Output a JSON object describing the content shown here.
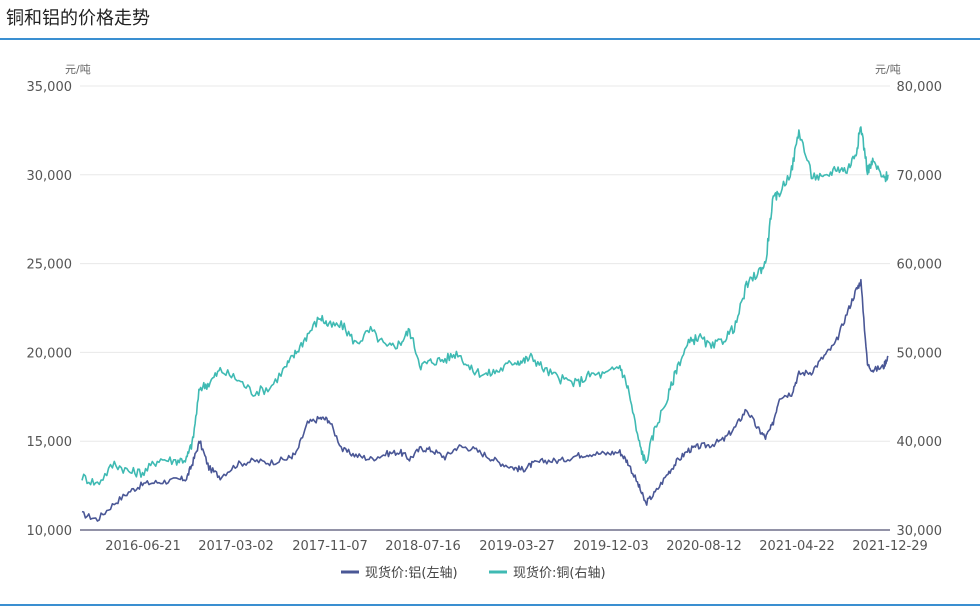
{
  "page": {
    "title": "铜和铝的价格走势"
  },
  "chart_data": {
    "type": "line",
    "title": "",
    "left_unit": "元/吨",
    "right_unit": "元/吨",
    "left_ylim": [
      10000,
      35000
    ],
    "right_ylim": [
      30000,
      80000
    ],
    "left_ticks": [
      "10,000",
      "15,000",
      "20,000",
      "25,000",
      "30,000",
      "35,000"
    ],
    "right_ticks": [
      "30,000",
      "40,000",
      "50,000",
      "60,000",
      "70,000",
      "80,000"
    ],
    "x_ticks": [
      "2016-06-21",
      "2017-03-02",
      "2017-11-07",
      "2018-07-16",
      "2019-03-27",
      "2019-12-03",
      "2020-08-12",
      "2021-04-22",
      "2021-12-29"
    ],
    "grid": "horizontal",
    "legend_position": "bottom",
    "x": [
      "2016-01-04",
      "2016-02-15",
      "2016-04-01",
      "2016-05-15",
      "2016-06-21",
      "2016-08-01",
      "2016-09-15",
      "2016-10-15",
      "2016-11-01",
      "2016-11-20",
      "2016-12-15",
      "2017-01-15",
      "2017-03-02",
      "2017-04-15",
      "2017-05-30",
      "2017-07-15",
      "2017-08-10",
      "2017-09-10",
      "2017-10-15",
      "2017-11-07",
      "2017-12-15",
      "2018-01-20",
      "2018-03-01",
      "2018-04-15",
      "2018-05-20",
      "2018-06-15",
      "2018-07-16",
      "2018-08-15",
      "2018-09-20",
      "2018-10-25",
      "2018-12-01",
      "2019-01-10",
      "2019-02-15",
      "2019-03-27",
      "2019-04-20",
      "2019-05-15",
      "2019-06-20",
      "2019-08-01",
      "2019-09-15",
      "2019-10-20",
      "2019-12-03",
      "2020-01-10",
      "2020-02-01",
      "2020-03-01",
      "2020-03-20",
      "2020-04-15",
      "2020-05-20",
      "2020-06-15",
      "2020-07-15",
      "2020-08-12",
      "2020-09-15",
      "2020-10-20",
      "2020-11-20",
      "2020-12-20",
      "2021-01-20",
      "2021-02-10",
      "2021-03-01",
      "2021-03-20",
      "2021-04-22",
      "2021-05-12",
      "2021-06-15",
      "2021-07-20",
      "2021-08-20",
      "2021-09-20",
      "2021-10-15",
      "2021-10-28",
      "2021-11-15",
      "2021-12-01",
      "2021-12-29",
      "2022-01-10"
    ],
    "series": [
      {
        "name": "现货价:铝(左轴)",
        "color": "#4a5796",
        "axis": "left",
        "values": [
          10900,
          10600,
          11500,
          12200,
          12600,
          12700,
          12800,
          12900,
          13800,
          15000,
          13500,
          13000,
          13700,
          13900,
          13800,
          14000,
          14300,
          16000,
          16300,
          16200,
          14500,
          14200,
          14000,
          14300,
          14400,
          14000,
          14600,
          14500,
          14100,
          14700,
          14600,
          14200,
          13800,
          13500,
          13400,
          13700,
          13900,
          13900,
          14200,
          14300,
          14300,
          14400,
          13800,
          12500,
          11500,
          12100,
          13200,
          13900,
          14500,
          14700,
          14800,
          15100,
          15800,
          16800,
          15700,
          15200,
          15900,
          17500,
          17700,
          18800,
          18900,
          19800,
          20500,
          22200,
          23500,
          24000,
          19300,
          19000,
          19200,
          19800
        ]
      },
      {
        "name": "现货价:铜(右轴)",
        "color": "#3fbab3",
        "axis": "right",
        "values": [
          36000,
          35200,
          37500,
          36500,
          36500,
          38000,
          37800,
          38000,
          40000,
          46000,
          46500,
          48000,
          47000,
          45500,
          46000,
          48500,
          50000,
          52000,
          54000,
          53000,
          53000,
          51000,
          52500,
          50500,
          51000,
          52500,
          48500,
          49000,
          49200,
          50000,
          48000,
          47500,
          48000,
          49000,
          49000,
          49500,
          48000,
          47000,
          46500,
          47500,
          47500,
          48500,
          46000,
          40000,
          37500,
          41500,
          45000,
          48500,
          51000,
          51800,
          50500,
          51500,
          53000,
          57500,
          59000,
          60000,
          67000,
          68000,
          70500,
          75000,
          70000,
          69500,
          70800,
          70500,
          72500,
          75500,
          70500,
          71500,
          69500,
          70000
        ]
      }
    ]
  }
}
